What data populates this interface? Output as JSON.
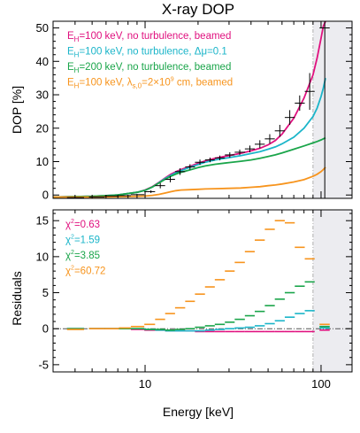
{
  "chart_data": [
    {
      "type": "line",
      "title": "X-ray DOP",
      "xlabel": "",
      "ylabel": "DOP [%]",
      "xscale": "log",
      "xlim": [
        3,
        150
      ],
      "ylim": [
        -1,
        52
      ],
      "yticks": [
        0,
        10,
        20,
        30,
        40,
        50
      ],
      "shaded_region": {
        "x_from": 90,
        "x_to": 150,
        "color": "#ececf0"
      },
      "series": [
        {
          "name_parts": [
            "E",
            "H",
            "=100 keV, no turbulence, beamed"
          ],
          "color": "#e0117f",
          "x": [
            3,
            5,
            7,
            9,
            10,
            11,
            12,
            13,
            14,
            15,
            16,
            18,
            20,
            22,
            25,
            30,
            35,
            40,
            45,
            50,
            55,
            60,
            70,
            80,
            90,
            95,
            100,
            103,
            106
          ],
          "y": [
            -0.6,
            -0.4,
            0,
            0.8,
            1.5,
            2.5,
            3.8,
            5.1,
            6.2,
            7.0,
            7.6,
            8.6,
            9.5,
            10.2,
            11.0,
            11.8,
            12.5,
            13.2,
            14.0,
            15.0,
            16.3,
            18.2,
            23.0,
            29.0,
            36.0,
            41.0,
            47.0,
            50.5,
            52
          ]
        },
        {
          "name_parts": [
            "E",
            "H",
            "=100 keV, no turbulence, Δμ=0.1"
          ],
          "color": "#1bb5c9",
          "x": [
            3,
            5,
            7,
            9,
            10,
            11,
            12,
            13,
            14,
            15,
            16,
            18,
            20,
            22,
            25,
            30,
            35,
            40,
            45,
            50,
            55,
            60,
            70,
            80,
            90,
            95,
            100,
            103,
            106
          ],
          "y": [
            -0.6,
            -0.4,
            0,
            0.8,
            1.4,
            2.4,
            3.7,
            4.9,
            5.9,
            6.7,
            7.3,
            8.3,
            9.1,
            9.8,
            10.5,
            11.2,
            11.8,
            12.4,
            13.0,
            13.7,
            14.4,
            15.3,
            17.3,
            20.0,
            23.5,
            26.0,
            29.5,
            32.0,
            35.0
          ]
        },
        {
          "name_parts": [
            "E",
            "H",
            "=200 keV, no turbulence, beamed"
          ],
          "color": "#1aa54a",
          "x": [
            3,
            5,
            7,
            9,
            10,
            11,
            12,
            13,
            14,
            15,
            16,
            18,
            20,
            22,
            25,
            30,
            35,
            40,
            45,
            50,
            55,
            60,
            70,
            80,
            90,
            95,
            100,
            103,
            106
          ],
          "y": [
            -0.6,
            -0.4,
            0,
            0.8,
            1.4,
            2.4,
            3.6,
            4.7,
            5.6,
            6.3,
            6.8,
            7.5,
            8.2,
            8.7,
            9.2,
            9.7,
            10.1,
            10.5,
            11.0,
            11.5,
            12.0,
            12.6,
            13.7,
            14.7,
            15.6,
            16.0,
            16.5,
            16.8,
            17.1
          ]
        },
        {
          "name_parts": [
            "E",
            "H",
            "=100 keV, λ",
            "s,0",
            "=2×10",
            "9",
            " cm, beamed"
          ],
          "color": "#f7941d",
          "x": [
            3,
            5,
            7,
            9,
            10,
            11,
            12,
            13,
            14,
            15,
            16,
            18,
            20,
            22,
            25,
            30,
            35,
            40,
            45,
            50,
            55,
            60,
            70,
            80,
            90,
            95,
            100,
            103,
            106
          ],
          "y": [
            -0.6,
            -0.6,
            -0.5,
            -0.4,
            -0.3,
            -0.1,
            0.2,
            0.6,
            1.0,
            1.3,
            1.5,
            1.6,
            1.7,
            1.8,
            1.9,
            2.0,
            2.1,
            2.3,
            2.5,
            2.8,
            3.0,
            3.3,
            3.9,
            4.6,
            5.6,
            6.2,
            7.0,
            7.6,
            8.3
          ]
        }
      ],
      "observed": {
        "x": [
          4.0,
          5.3,
          6.5,
          7.7,
          9.0,
          10.8,
          12.2,
          13.9,
          15.8,
          18.0,
          20.5,
          23.4,
          26.6,
          30.3,
          34.5,
          39.4,
          44.9,
          51.1,
          58.3,
          66.4,
          75.6,
          86.2,
          105
        ],
        "xlo": [
          3.6,
          4.8,
          5.9,
          7.1,
          8.3,
          9.9,
          11.4,
          13.0,
          14.8,
          16.9,
          19.2,
          21.9,
          24.9,
          28.4,
          32.3,
          36.9,
          42.0,
          47.9,
          54.6,
          62.2,
          70.9,
          80.8,
          98
        ],
        "xhi": [
          4.5,
          5.9,
          7.1,
          8.3,
          9.9,
          11.4,
          13.0,
          14.8,
          16.9,
          19.2,
          21.9,
          24.9,
          28.4,
          32.3,
          36.9,
          42.0,
          47.9,
          54.6,
          62.2,
          70.9,
          80.8,
          92.0,
          112
        ],
        "y": [
          -0.8,
          -0.6,
          -0.3,
          -0.2,
          0.1,
          1.0,
          2.8,
          4.7,
          7.0,
          8.4,
          9.8,
          10.5,
          11.1,
          12.0,
          12.8,
          13.8,
          15.2,
          16.8,
          19.2,
          23.2,
          27.5,
          31.0,
          50
        ],
        "ylo": [
          -0.8,
          -0.6,
          -0.3,
          -0.2,
          -0.1,
          0.6,
          2.0,
          3.8,
          6.0,
          7.6,
          9.0,
          9.8,
          10.4,
          11.2,
          12.0,
          12.8,
          14.0,
          15.4,
          17.4,
          21.0,
          25.2,
          25.5,
          -2
        ],
        "yhi": [
          -0.8,
          -0.6,
          -0.3,
          -0.2,
          0.3,
          1.4,
          3.6,
          5.6,
          8.0,
          9.2,
          10.6,
          11.2,
          11.8,
          12.8,
          13.6,
          14.8,
          16.4,
          18.2,
          21.0,
          25.4,
          29.8,
          36.5,
          52
        ]
      }
    },
    {
      "type": "line",
      "xlabel": "Energy [keV]",
      "ylabel": "Residuals",
      "xscale": "log",
      "xlim": [
        3,
        150
      ],
      "ylim": [
        -6,
        16.5
      ],
      "yticks": [
        -5,
        0,
        5,
        10,
        15
      ],
      "xticks": [
        10,
        100
      ],
      "shaded_region": {
        "x_from": 90,
        "x_to": 150,
        "color": "#ececf0"
      },
      "reference_line": {
        "y": 0,
        "style": "dash-dot"
      },
      "chi2_labels": [
        {
          "text": "χ",
          "sup": "2",
          "value": "=0.63",
          "color": "#e0117f"
        },
        {
          "text": "χ",
          "sup": "2",
          "value": "=1.59",
          "color": "#1bb5c9"
        },
        {
          "text": "χ",
          "sup": "2",
          "value": "=3.85",
          "color": "#1aa54a"
        },
        {
          "text": "χ",
          "sup": "2",
          "value": "=60.72",
          "color": "#f7941d"
        }
      ],
      "residual_series": [
        {
          "color": "#e0117f",
          "y": [
            0,
            0,
            0,
            0,
            -0.1,
            -0.2,
            -0.2,
            -0.3,
            -0.3,
            -0.3,
            -0.4,
            -0.4,
            -0.4,
            -0.4,
            -0.4,
            -0.4,
            -0.4,
            -0.4,
            -0.4,
            -0.4,
            -0.4,
            -0.4,
            -0.2
          ]
        },
        {
          "color": "#1bb5c9",
          "y": [
            0,
            0,
            0,
            0,
            0,
            -0.1,
            -0.2,
            -0.3,
            -0.3,
            -0.3,
            -0.3,
            -0.2,
            -0.1,
            0.0,
            0.1,
            0.2,
            0.4,
            0.7,
            1.1,
            1.6,
            2.1,
            2.5,
            0.1
          ]
        },
        {
          "color": "#1aa54a",
          "y": [
            0,
            0,
            0,
            0,
            0,
            -0.1,
            -0.1,
            -0.2,
            -0.1,
            0,
            0.2,
            0.4,
            0.6,
            0.9,
            1.3,
            1.8,
            2.4,
            3.2,
            4.1,
            5.0,
            5.9,
            6.5,
            0.3
          ]
        },
        {
          "color": "#f7941d",
          "y": [
            -0.1,
            0,
            0,
            0.1,
            0.3,
            0.6,
            1.3,
            2.1,
            2.9,
            3.8,
            4.8,
            5.8,
            6.8,
            8.0,
            9.2,
            10.7,
            12.3,
            13.8,
            15.0,
            14.7,
            11.3,
            9.7,
            0.6
          ]
        }
      ]
    }
  ]
}
